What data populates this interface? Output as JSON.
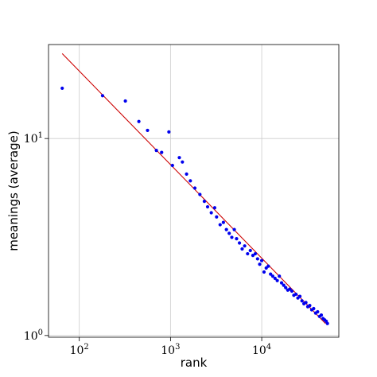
{
  "chart_data": {
    "type": "scatter",
    "xlabel": "rank",
    "ylabel": "meanings (average)",
    "xscale": "log",
    "yscale": "log",
    "xlim": [
      46,
      70000
    ],
    "ylim": [
      0.98,
      30
    ],
    "grid": true,
    "x_ticks": [
      {
        "value": 100,
        "base": "10",
        "exp": "2"
      },
      {
        "value": 1000,
        "base": "10",
        "exp": "3"
      },
      {
        "value": 10000,
        "base": "10",
        "exp": "4"
      }
    ],
    "y_ticks": [
      {
        "value": 1,
        "base": "10",
        "exp": "0"
      },
      {
        "value": 10,
        "base": "10",
        "exp": "1"
      }
    ],
    "colors": {
      "points": "#0000ee",
      "fit": "#cc0000",
      "grid": "#cccccc"
    },
    "fit_line": {
      "x": [
        65,
        50000
      ],
      "y": [
        27.0,
        1.15
      ]
    },
    "series": [
      {
        "values": [
          [
            65,
            18.0
          ],
          [
            180,
            16.5
          ],
          [
            320,
            15.5
          ],
          [
            450,
            12.2
          ],
          [
            560,
            11.0
          ],
          [
            700,
            8.7
          ],
          [
            800,
            8.5
          ],
          [
            960,
            10.8
          ],
          [
            1050,
            7.3
          ],
          [
            1250,
            8.0
          ],
          [
            1350,
            7.6
          ],
          [
            1500,
            6.6
          ],
          [
            1650,
            6.1
          ],
          [
            1850,
            5.6
          ],
          [
            2100,
            5.2
          ],
          [
            2350,
            4.8
          ],
          [
            2550,
            4.5
          ],
          [
            2800,
            4.2
          ],
          [
            3050,
            4.45
          ],
          [
            3200,
            4.0
          ],
          [
            3500,
            3.65
          ],
          [
            3800,
            3.75
          ],
          [
            4100,
            3.45
          ],
          [
            4400,
            3.3
          ],
          [
            4700,
            3.15
          ],
          [
            5000,
            3.45
          ],
          [
            5300,
            3.1
          ],
          [
            5700,
            2.95
          ],
          [
            6100,
            2.75
          ],
          [
            6500,
            2.85
          ],
          [
            7000,
            2.6
          ],
          [
            7500,
            2.7
          ],
          [
            8000,
            2.55
          ],
          [
            8500,
            2.6
          ],
          [
            9000,
            2.45
          ],
          [
            9500,
            2.3
          ],
          [
            10000,
            2.4
          ],
          [
            10600,
            2.1
          ],
          [
            11200,
            2.2
          ],
          [
            11800,
            2.25
          ],
          [
            12500,
            2.05
          ],
          [
            13200,
            2.0
          ],
          [
            14000,
            1.95
          ],
          [
            14800,
            1.9
          ],
          [
            15600,
            2.0
          ],
          [
            16500,
            1.85
          ],
          [
            17400,
            1.8
          ],
          [
            18300,
            1.75
          ],
          [
            19300,
            1.7
          ],
          [
            20300,
            1.72
          ],
          [
            21400,
            1.68
          ],
          [
            22500,
            1.6
          ],
          [
            23700,
            1.62
          ],
          [
            24900,
            1.55
          ],
          [
            26200,
            1.58
          ],
          [
            27600,
            1.5
          ],
          [
            29000,
            1.45
          ],
          [
            30500,
            1.47
          ],
          [
            32000,
            1.4
          ],
          [
            33600,
            1.42
          ],
          [
            35300,
            1.35
          ],
          [
            37100,
            1.37
          ],
          [
            39000,
            1.3
          ],
          [
            41000,
            1.32
          ],
          [
            43000,
            1.25
          ],
          [
            45000,
            1.27
          ],
          [
            47000,
            1.22
          ],
          [
            49000,
            1.2
          ],
          [
            51000,
            1.18
          ],
          [
            52500,
            1.15
          ]
        ]
      }
    ]
  }
}
